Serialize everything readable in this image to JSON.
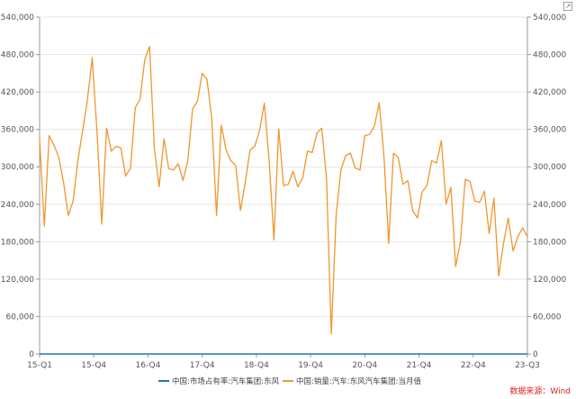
{
  "chart_data": {
    "type": "line",
    "x_ticks": [
      "15-Q1",
      "15-Q4",
      "16-Q4",
      "17-Q4",
      "18-Q4",
      "19-Q4",
      "20-Q4",
      "21-Q4",
      "22-Q4",
      "23-Q3"
    ],
    "y_ticks": [
      "0",
      "60,000",
      "120,000",
      "180,000",
      "240,000",
      "300,000",
      "360,000",
      "420,000",
      "480,000",
      "540,000"
    ],
    "ylim": [
      0,
      540000
    ],
    "grid": true,
    "legend_position": "bottom",
    "series": [
      {
        "name": "中国:市场占有率:汽车集团:东风",
        "color": "#1f77b4",
        "axis": "left",
        "values": [
          0.12,
          0.12,
          0.12,
          0.12,
          0.12,
          0.12,
          0.12,
          0.12,
          0.12,
          0.12,
          0.12,
          0.12,
          0.12,
          0.12,
          0.12,
          0.12,
          0.12,
          0.12,
          0.12,
          0.12,
          0.12,
          0.12,
          0.12,
          0.12,
          0.12,
          0.12,
          0.12,
          0.12,
          0.12,
          0.12,
          0.12,
          0.12,
          0.12,
          0.12,
          0.12,
          0.12,
          0.12,
          0.12,
          0.12,
          0.12,
          0.12,
          0.12,
          0.12,
          0.12,
          0.12,
          0.12,
          0.12,
          0.12,
          0.12,
          0.12,
          0.12,
          0.12,
          0.12,
          0.12,
          0.12,
          0.12,
          0.12,
          0.12,
          0.12,
          0.12,
          0.12,
          0.12,
          0.12,
          0.12,
          0.12,
          0.12,
          0.12,
          0.12,
          0.12,
          0.12,
          0.12,
          0.12,
          0.12,
          0.12,
          0.12,
          0.12,
          0.12,
          0.12,
          0.12,
          0.12,
          0.12,
          0.12,
          0.12,
          0.12,
          0.12,
          0.12,
          0.12,
          0.12,
          0.12,
          0.12,
          0.12,
          0.12,
          0.12,
          0.12,
          0.12,
          0.12,
          0.12,
          0.12,
          0.12,
          0.12,
          0.12,
          0.12,
          0.12,
          0.12
        ]
      },
      {
        "name": "中国:销量:汽车:东风汽车集团:当月值",
        "color": "#f0962e",
        "axis": "right",
        "values": [
          345000,
          205000,
          350000,
          335000,
          315000,
          275000,
          222000,
          245000,
          310000,
          358000,
          407000,
          475000,
          355000,
          208000,
          362000,
          325000,
          333000,
          330000,
          285000,
          298000,
          395000,
          408000,
          472000,
          493000,
          330000,
          268000,
          345000,
          297000,
          295000,
          305000,
          278000,
          310000,
          393000,
          405000,
          450000,
          440000,
          378000,
          222000,
          367000,
          327000,
          310000,
          302000,
          230000,
          275000,
          327000,
          333000,
          358000,
          402000,
          308000,
          183000,
          361000,
          270000,
          272000,
          293000,
          268000,
          282000,
          325000,
          323000,
          354000,
          362000,
          282000,
          32000,
          222000,
          295000,
          318000,
          322000,
          298000,
          295000,
          350000,
          352000,
          365000,
          403000,
          318000,
          177000,
          322000,
          315000,
          272000,
          278000,
          230000,
          218000,
          260000,
          270000,
          310000,
          306000,
          342000,
          240000,
          267000,
          140000,
          180000,
          280000,
          277000,
          245000,
          243000,
          261000,
          193000,
          250000,
          125000,
          177000,
          218000,
          165000,
          188000,
          202000,
          188000
        ]
      }
    ]
  },
  "legend": {
    "series1": "中国:市场占有率:汽车集团:东风",
    "series2": "中国:销量:汽车:东风汽车集团:当月值"
  },
  "source": "数据来源：Wind",
  "icons": {
    "corner": "expand-icon"
  }
}
